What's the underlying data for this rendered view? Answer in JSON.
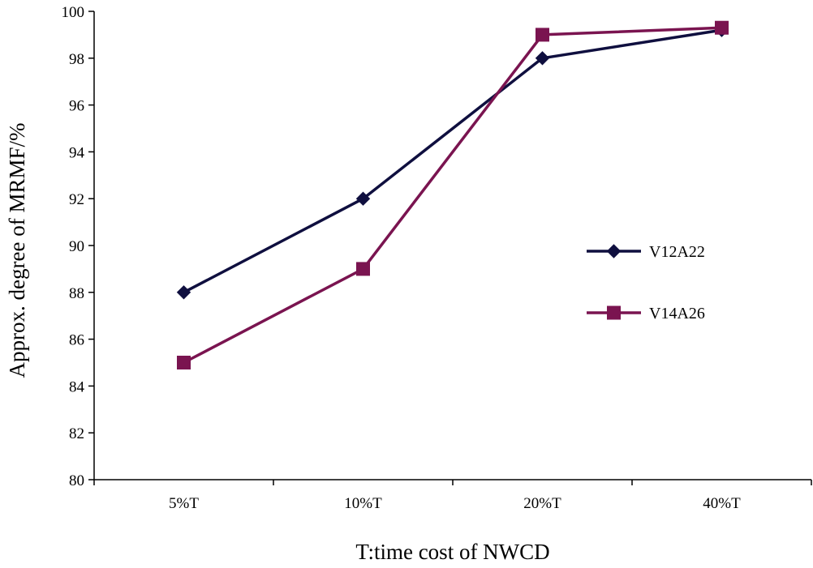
{
  "chart_data": {
    "type": "line",
    "title": "",
    "xlabel": "T:time cost of NWCD",
    "ylabel": "Approx. degree of MRMF/%",
    "categories": [
      "5%T",
      "10%T",
      "20%T",
      "40%T"
    ],
    "ylim": [
      80,
      100
    ],
    "yticks": [
      80,
      82,
      84,
      86,
      88,
      90,
      92,
      94,
      96,
      98,
      100
    ],
    "grid": false,
    "legend": "right-center",
    "series": [
      {
        "name": "V12A22",
        "marker": "diamond",
        "color": "#0f0f3f",
        "values": [
          88,
          92,
          98,
          99.2
        ]
      },
      {
        "name": "V14A26",
        "marker": "square",
        "color": "#7a1450",
        "values": [
          85,
          89,
          99,
          99.3
        ]
      }
    ]
  }
}
